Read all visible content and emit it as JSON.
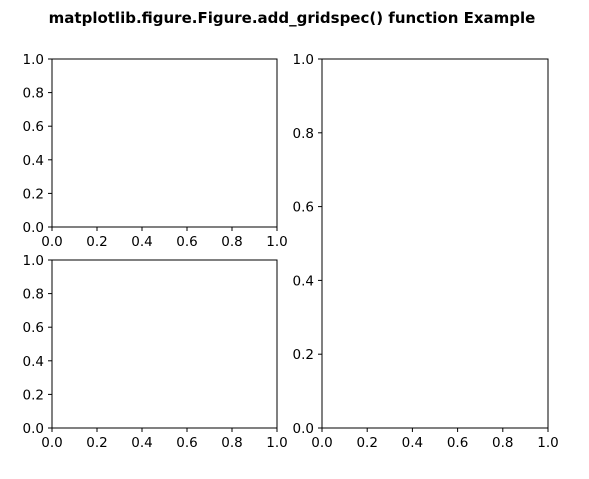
{
  "figure": {
    "suptitle": "matplotlib.figure.Figure.add_gridspec() function Example"
  },
  "chart_data": [
    {
      "type": "line",
      "name": "top-left-axes",
      "title": "",
      "xlabel": "",
      "ylabel": "",
      "xlim": [
        0.0,
        1.0
      ],
      "ylim": [
        0.0,
        1.0
      ],
      "xticks": [
        0.0,
        0.2,
        0.4,
        0.6,
        0.8,
        1.0
      ],
      "yticks": [
        0.0,
        0.2,
        0.4,
        0.6,
        0.8,
        1.0
      ],
      "xtick_labels": [
        "0.0",
        "0.2",
        "0.4",
        "0.6",
        "0.8",
        "1.0"
      ],
      "ytick_labels": [
        "0.0",
        "0.2",
        "0.4",
        "0.6",
        "0.8",
        "1.0"
      ],
      "grid": false,
      "series": []
    },
    {
      "type": "line",
      "name": "bottom-left-axes",
      "title": "",
      "xlabel": "",
      "ylabel": "",
      "xlim": [
        0.0,
        1.0
      ],
      "ylim": [
        0.0,
        1.0
      ],
      "xticks": [
        0.0,
        0.2,
        0.4,
        0.6,
        0.8,
        1.0
      ],
      "yticks": [
        0.0,
        0.2,
        0.4,
        0.6,
        0.8,
        1.0
      ],
      "xtick_labels": [
        "0.0",
        "0.2",
        "0.4",
        "0.6",
        "0.8",
        "1.0"
      ],
      "ytick_labels": [
        "0.0",
        "0.2",
        "0.4",
        "0.6",
        "0.8",
        "1.0"
      ],
      "grid": false,
      "series": []
    },
    {
      "type": "line",
      "name": "right-axes",
      "title": "",
      "xlabel": "",
      "ylabel": "",
      "xlim": [
        0.0,
        1.0
      ],
      "ylim": [
        0.0,
        1.0
      ],
      "xticks": [
        0.0,
        0.2,
        0.4,
        0.6,
        0.8,
        1.0
      ],
      "yticks": [
        0.0,
        0.2,
        0.4,
        0.6,
        0.8,
        1.0
      ],
      "xtick_labels": [
        "0.0",
        "0.2",
        "0.4",
        "0.6",
        "0.8",
        "1.0"
      ],
      "ytick_labels": [
        "0.0",
        "0.2",
        "0.4",
        "0.6",
        "0.8",
        "1.0"
      ],
      "grid": false,
      "series": []
    }
  ]
}
